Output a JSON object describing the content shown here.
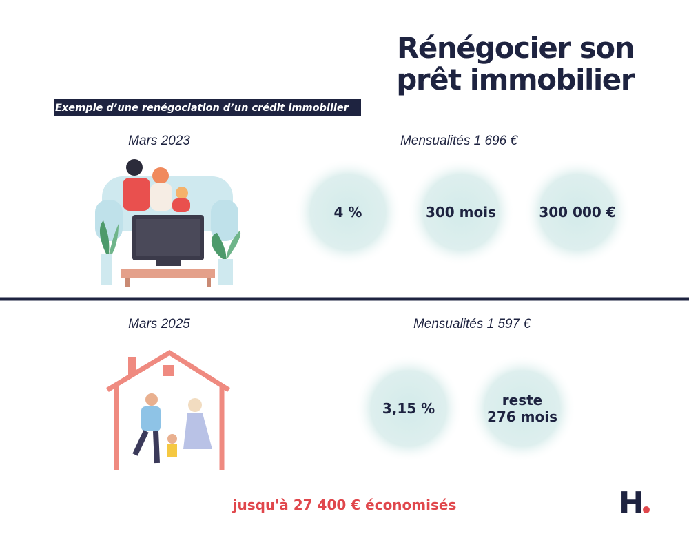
{
  "header": {
    "title_lines": [
      "Rénégocier son",
      "prêt immobilier"
    ],
    "subtitle": "Exemple d’une renégociation d’un crédit immobilier"
  },
  "sections": [
    {
      "date": "Mars 2023",
      "monthly": "Mensualités 1 696 €",
      "bubbles": [
        [
          "4 %"
        ],
        [
          "300 mois"
        ],
        [
          "300 000 €"
        ]
      ]
    },
    {
      "date": "Mars 2025",
      "monthly": "Mensualités 1 597 €",
      "bubbles": [
        [
          "3,15 %"
        ],
        [
          "reste",
          "276 mois"
        ]
      ]
    }
  ],
  "footer": {
    "savings": "jusqu'à 27 400 € économisés",
    "logo": "H"
  }
}
